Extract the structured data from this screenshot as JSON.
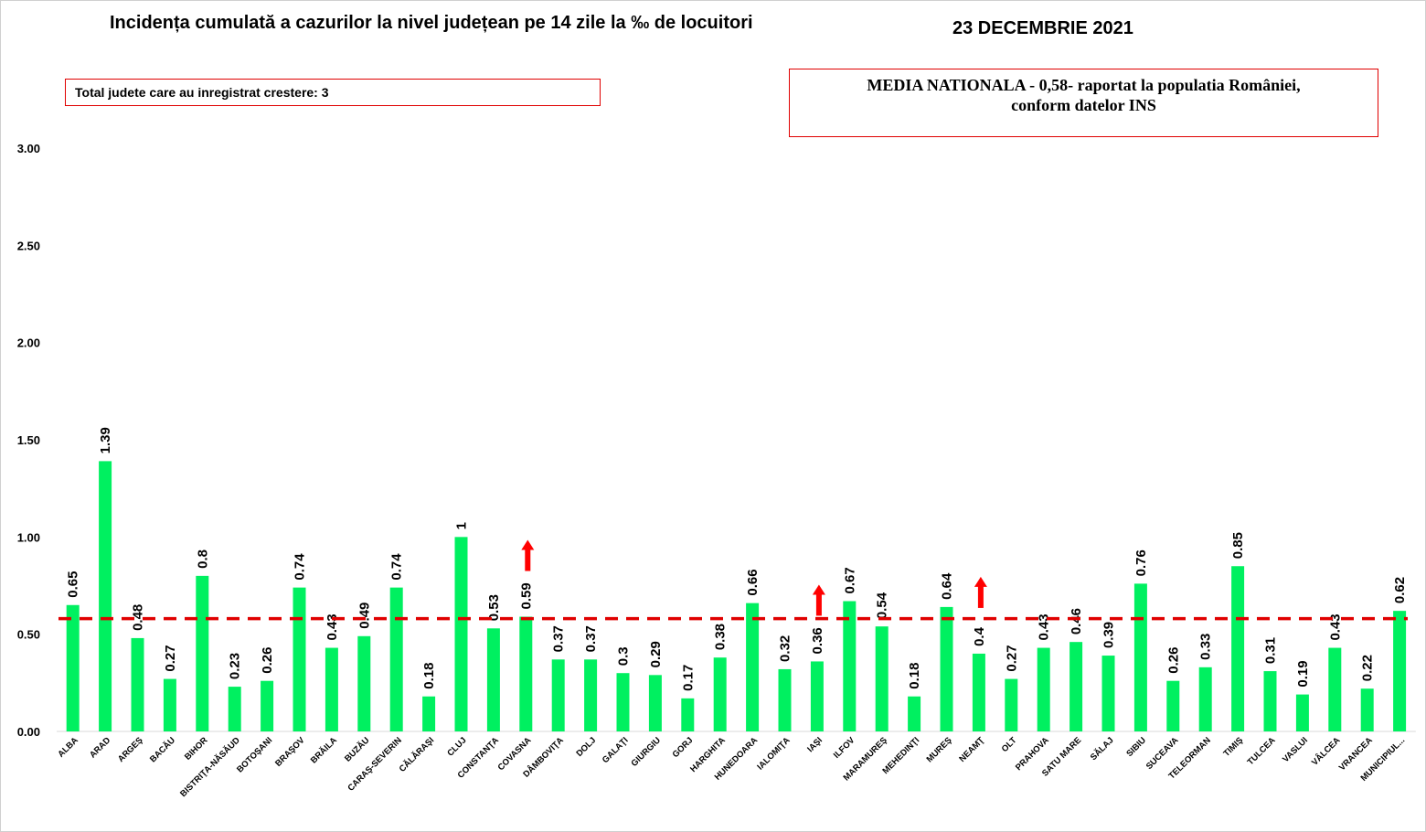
{
  "header": {
    "title": "Incidența cumulată a cazurilor la nivel județean pe 14 zile la ‰ de locuitori",
    "date": "23 DECEMBRIE 2021"
  },
  "info_box": {
    "text": "Total judete care au inregistrat crestere: 3"
  },
  "national_box": {
    "line1": "MEDIA NATIONALA - 0,58-  raportat la populatia României,",
    "line2": "conform datelor INS"
  },
  "colors": {
    "bar": "#00f060",
    "average_line": "#e00000",
    "arrow": "#ff0000",
    "text": "#000000"
  },
  "chart_data": {
    "type": "bar",
    "title": "Incidența cumulată a cazurilor la nivel județean pe 14 zile la ‰ de locuitori",
    "ylim": [
      0,
      3
    ],
    "yticks": [
      "0.00",
      "0.50",
      "1.00",
      "1.50",
      "2.00",
      "2.50",
      "3.00"
    ],
    "grid": false,
    "categories": [
      "ALBA",
      "ARAD",
      "ARGEŞ",
      "BACĂU",
      "BIHOR",
      "BISTRIŢA-NĂSĂUD",
      "BOTOŞANI",
      "BRAŞOV",
      "BRĂILA",
      "BUZĂU",
      "CARAŞ-SEVERIN",
      "CĂLĂRAŞI",
      "CLUJ",
      "CONSTANŢA",
      "COVASNA",
      "DÂMBOVIŢA",
      "DOLJ",
      "GALAŢI",
      "GIURGIU",
      "GORJ",
      "HARGHITA",
      "HUNEDOARA",
      "IALOMIŢA",
      "IAŞI",
      "ILFOV",
      "MARAMUREŞ",
      "MEHEDINŢI",
      "MUREŞ",
      "NEAMŢ",
      "OLT",
      "PRAHOVA",
      "SATU MARE",
      "SĂLAJ",
      "SIBIU",
      "SUCEAVA",
      "TELEORMAN",
      "TIMIŞ",
      "TULCEA",
      "VASLUI",
      "VÂLCEA",
      "VRANCEA",
      "MUNICIPIUL..."
    ],
    "values": [
      0.65,
      1.39,
      0.48,
      0.27,
      0.8,
      0.23,
      0.26,
      0.74,
      0.43,
      0.49,
      0.74,
      0.18,
      1,
      0.53,
      0.59,
      0.37,
      0.37,
      0.3,
      0.29,
      0.17,
      0.38,
      0.66,
      0.32,
      0.36,
      0.67,
      0.54,
      0.18,
      0.64,
      0.4,
      0.27,
      0.43,
      0.46,
      0.39,
      0.76,
      0.26,
      0.33,
      0.85,
      0.31,
      0.19,
      0.43,
      0.22,
      0.62
    ],
    "value_labels": [
      "0.65",
      "1.39",
      "0.48",
      "0.27",
      "0.8",
      "0.23",
      "0.26",
      "0.74",
      "0.43",
      "0.49",
      "0.74",
      "0.18",
      "1",
      "0.53",
      "0.59",
      "0.37",
      "0.37",
      "0.3",
      "0.29",
      "0.17",
      "0.38",
      "0.66",
      "0.32",
      "0.36",
      "0.67",
      "0.54",
      "0.18",
      "0.64",
      "0.4",
      "0.27",
      "0.43",
      "0.46",
      "0.39",
      "0.76",
      "0.26",
      "0.33",
      "0.85",
      "0.31",
      "0.19",
      "0.43",
      "0.22",
      "0.62"
    ],
    "average_line_value": 0.58,
    "increase_arrows": [
      "COVASNA",
      "IAŞI",
      "NEAMŢ"
    ]
  }
}
